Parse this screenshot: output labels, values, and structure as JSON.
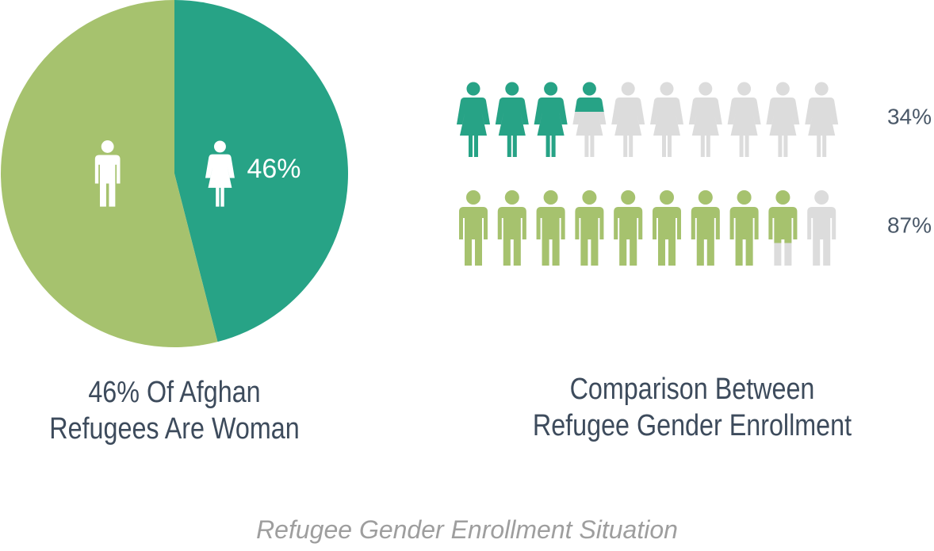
{
  "caption": "Refugee Gender Enrollment Situation",
  "chart_data": [
    {
      "type": "pie",
      "title": "46% Of Afghan Refugees Are Woman",
      "categories": [
        null,
        null
      ],
      "values": [
        54,
        46
      ],
      "value_labels": [
        null,
        "46%"
      ],
      "icons": [
        "man",
        "woman"
      ],
      "colors": [
        "#a6c26e",
        "#27a386"
      ]
    },
    {
      "type": "pictograph",
      "title": "Comparison Between Refugee Gender Enrollment",
      "categories": [
        null,
        null
      ],
      "values": [
        34,
        87
      ],
      "value_labels": [
        "34%",
        "87%"
      ],
      "icons": [
        "woman",
        "man"
      ],
      "colors": [
        "#27a386",
        "#a6c26e"
      ],
      "empty_color": "#dcdcdc"
    }
  ]
}
